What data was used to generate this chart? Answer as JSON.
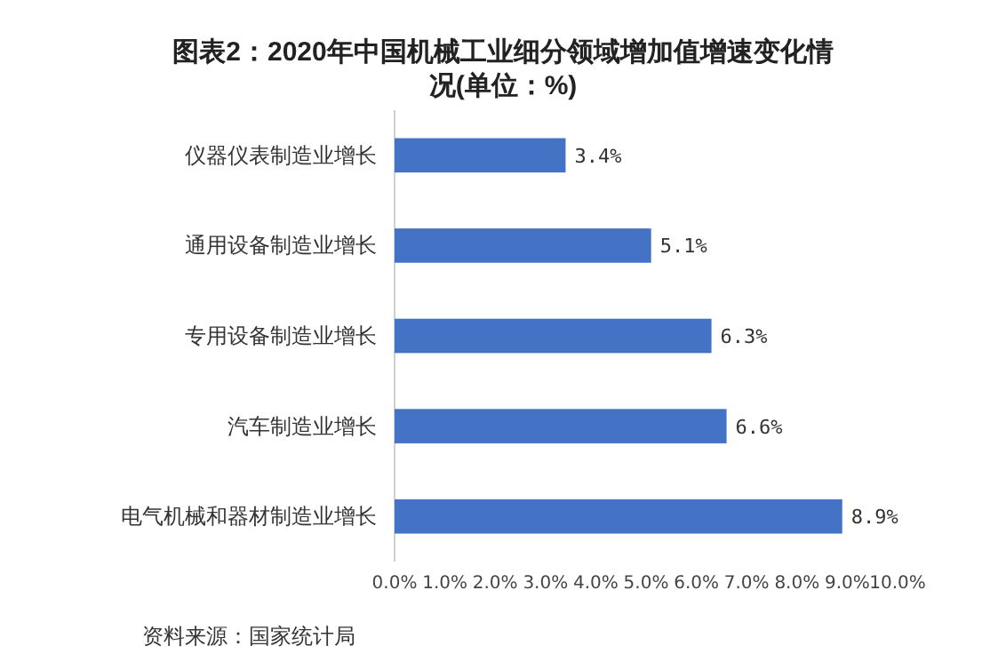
{
  "chart_data": {
    "type": "bar",
    "orientation": "horizontal",
    "title": "图表2：2020年中国机械工业细分领域增加值增速变化情况(单位：%)",
    "categories": [
      "仪器仪表制造业增长",
      "通用设备制造业增长",
      "专用设备制造业增长",
      "汽车制造业增长",
      "电气机械和器材制造业增长"
    ],
    "values": [
      3.4,
      5.1,
      6.3,
      6.6,
      8.9
    ],
    "color": "#4472c4",
    "value_labels": [
      "3.4%",
      "5.1%",
      "6.3%",
      "6.6%",
      "8.9%"
    ],
    "xlim": [
      0,
      10
    ],
    "xticks": [
      {
        "value": 0,
        "label": "0.0%"
      },
      {
        "value": 1,
        "label": "1.0%"
      },
      {
        "value": 2,
        "label": "2.0%"
      },
      {
        "value": 3,
        "label": "3.0%"
      },
      {
        "value": 4,
        "label": "4.0%"
      },
      {
        "value": 5,
        "label": "5.0%"
      },
      {
        "value": 6,
        "label": "6.0%"
      },
      {
        "value": 7,
        "label": "7.0%"
      },
      {
        "value": 8,
        "label": "8.0%"
      },
      {
        "value": 9,
        "label": "9.0%"
      },
      {
        "value": 10,
        "label": "10.0%"
      }
    ],
    "grid": false,
    "annotations": [
      "资料来源：国家统计局"
    ]
  }
}
